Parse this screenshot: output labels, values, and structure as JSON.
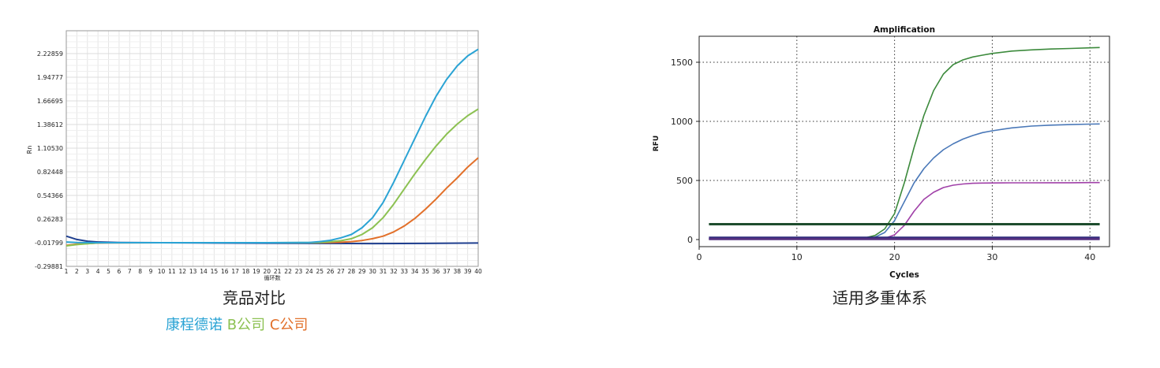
{
  "captions": {
    "left": "竞品对比",
    "right": "适用多重体系"
  },
  "legend": [
    {
      "label": "康程德诺",
      "color": "#2aa3d4"
    },
    {
      "label": "B公司",
      "color": "#8cc152"
    },
    {
      "label": "C公司",
      "color": "#e2702a"
    }
  ],
  "chart_data": [
    {
      "type": "line",
      "title": "",
      "xlabel": "循环数",
      "ylabel": "Rn",
      "grid": true,
      "xlim": [
        1,
        40
      ],
      "ylim": [
        -0.29881,
        2.5
      ],
      "x_ticks": [
        1,
        2,
        3,
        4,
        5,
        6,
        7,
        8,
        9,
        10,
        11,
        12,
        13,
        14,
        15,
        16,
        17,
        18,
        19,
        20,
        21,
        22,
        23,
        24,
        25,
        26,
        27,
        28,
        29,
        30,
        31,
        32,
        33,
        34,
        35,
        36,
        37,
        38,
        39,
        40
      ],
      "y_ticks": [
        "-0.29881",
        "-0.01799",
        "0.26283",
        "0.54366",
        "0.82448",
        "1.10530",
        "1.38612",
        "1.66695",
        "1.94777",
        "2.22859"
      ],
      "series": [
        {
          "name": "康程德诺",
          "color": "#2aa3d4",
          "x": [
            1,
            2,
            3,
            4,
            5,
            10,
            15,
            20,
            24,
            25,
            26,
            27,
            28,
            29,
            30,
            31,
            32,
            33,
            34,
            35,
            36,
            37,
            38,
            39,
            40
          ],
          "y": [
            -0.01,
            -0.015,
            -0.017,
            -0.018,
            -0.018,
            -0.018,
            -0.018,
            -0.018,
            -0.015,
            -0.005,
            0.01,
            0.04,
            0.08,
            0.16,
            0.28,
            0.46,
            0.7,
            0.96,
            1.22,
            1.48,
            1.72,
            1.92,
            2.08,
            2.2,
            2.28
          ]
        },
        {
          "name": "B公司",
          "color": "#8cc152",
          "x": [
            1,
            2,
            3,
            4,
            5,
            10,
            15,
            20,
            24,
            25,
            26,
            27,
            28,
            29,
            30,
            31,
            32,
            33,
            34,
            35,
            36,
            37,
            38,
            39,
            40
          ],
          "y": [
            -0.055,
            -0.04,
            -0.03,
            -0.02,
            -0.018,
            -0.018,
            -0.018,
            -0.018,
            -0.017,
            -0.014,
            -0.007,
            0.005,
            0.03,
            0.08,
            0.16,
            0.28,
            0.44,
            0.62,
            0.8,
            0.97,
            1.13,
            1.27,
            1.39,
            1.49,
            1.57
          ]
        },
        {
          "name": "C公司",
          "color": "#e2702a",
          "x": [
            1,
            2,
            3,
            4,
            5,
            10,
            15,
            20,
            24,
            25,
            26,
            27,
            28,
            29,
            30,
            31,
            32,
            33,
            34,
            35,
            36,
            37,
            38,
            39,
            40
          ],
          "y": [
            -0.05,
            -0.035,
            -0.028,
            -0.022,
            -0.02,
            -0.018,
            -0.018,
            -0.018,
            -0.018,
            -0.017,
            -0.015,
            -0.012,
            -0.005,
            0.008,
            0.03,
            0.06,
            0.11,
            0.18,
            0.27,
            0.38,
            0.5,
            0.63,
            0.75,
            0.88,
            0.99
          ]
        },
        {
          "color": "#1f3f8f",
          "x": [
            1,
            2,
            3,
            4,
            6,
            10,
            15,
            20,
            25,
            30,
            35,
            40
          ],
          "y": [
            0.06,
            0.02,
            0.0,
            -0.01,
            -0.015,
            -0.018,
            -0.022,
            -0.024,
            -0.026,
            -0.028,
            -0.026,
            -0.022
          ]
        }
      ]
    },
    {
      "type": "line",
      "title": "Amplification",
      "xlabel": "Cycles",
      "ylabel": "RFU",
      "grid": true,
      "xlim": [
        0,
        42
      ],
      "ylim": [
        -60,
        1720
      ],
      "x_ticks": [
        "0",
        "10",
        "20",
        "30",
        "40"
      ],
      "y_ticks": [
        "0",
        "500",
        "1000",
        "1500"
      ],
      "series": [
        {
          "color": "#3c8a3c",
          "x": [
            1,
            15,
            16,
            17,
            18,
            19,
            20,
            21,
            22,
            23,
            24,
            25,
            26,
            27,
            28,
            29,
            30,
            32,
            34,
            36,
            38,
            40,
            41
          ],
          "y": [
            5,
            5,
            8,
            15,
            35,
            90,
            220,
            480,
            780,
            1050,
            1260,
            1400,
            1480,
            1520,
            1545,
            1560,
            1575,
            1595,
            1605,
            1612,
            1617,
            1622,
            1625
          ]
        },
        {
          "color": "#4a78b8",
          "x": [
            1,
            16,
            17,
            18,
            19,
            20,
            21,
            22,
            23,
            24,
            25,
            26,
            27,
            28,
            29,
            30,
            32,
            34,
            36,
            38,
            40,
            41
          ],
          "y": [
            5,
            5,
            8,
            20,
            60,
            160,
            320,
            480,
            600,
            690,
            760,
            810,
            850,
            880,
            905,
            920,
            945,
            960,
            968,
            973,
            977,
            978
          ]
        },
        {
          "color": "#a040a8",
          "x": [
            1,
            18,
            19,
            20,
            21,
            22,
            23,
            24,
            25,
            26,
            27,
            28,
            29,
            30,
            32,
            34,
            36,
            38,
            40,
            41
          ],
          "y": [
            5,
            5,
            10,
            40,
            120,
            240,
            340,
            400,
            440,
            460,
            470,
            476,
            478,
            479,
            480,
            480,
            481,
            481,
            482,
            482
          ]
        },
        {
          "color": "#1e4d2e",
          "x": [
            1,
            41
          ],
          "y": [
            130,
            130
          ]
        },
        {
          "color": "#2a2a7a",
          "x": [
            1,
            41
          ],
          "y": [
            15,
            15
          ]
        },
        {
          "color": "#553080",
          "x": [
            1,
            41
          ],
          "y": [
            5,
            5
          ]
        }
      ]
    }
  ]
}
